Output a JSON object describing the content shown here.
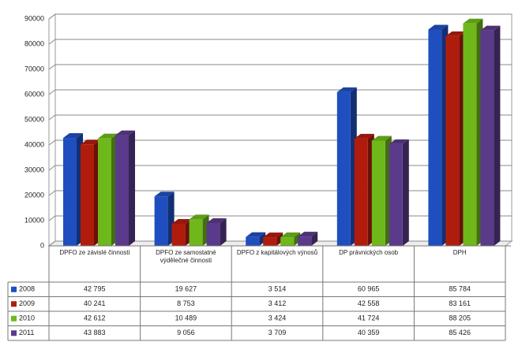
{
  "chart_data": {
    "type": "bar3d",
    "categories": [
      "DPFO ze závislé činnosti",
      "DPFO ze samostatné výdělečné činnosti",
      "DPFO z kapitálových výnosů",
      "DP právnických osob",
      "DPH"
    ],
    "series": [
      {
        "name": "2008",
        "color": "#1f4fbf",
        "values": [
          42795,
          19627,
          3514,
          60965,
          85784
        ],
        "value_labels": [
          "42 795",
          "19 627",
          "3 514",
          "60 965",
          "85 784"
        ]
      },
      {
        "name": "2009",
        "color": "#b01c0c",
        "values": [
          40241,
          8753,
          3412,
          42558,
          83161
        ],
        "value_labels": [
          "40 241",
          "8 753",
          "3 412",
          "42 558",
          "83 161"
        ]
      },
      {
        "name": "2010",
        "color": "#6fb81c",
        "values": [
          42612,
          10489,
          3424,
          41724,
          88205
        ],
        "value_labels": [
          "42 612",
          "10 489",
          "3 424",
          "41 724",
          "88 205"
        ]
      },
      {
        "name": "2011",
        "color": "#5a3a8a",
        "values": [
          43883,
          9056,
          3709,
          40359,
          85426
        ],
        "value_labels": [
          "43 883",
          "9 056",
          "3 709",
          "40 359",
          "85 426"
        ]
      }
    ],
    "ylim": [
      0,
      90000
    ],
    "yticks": [
      0,
      10000,
      20000,
      30000,
      40000,
      50000,
      60000,
      70000,
      80000,
      90000
    ],
    "grid": true
  }
}
